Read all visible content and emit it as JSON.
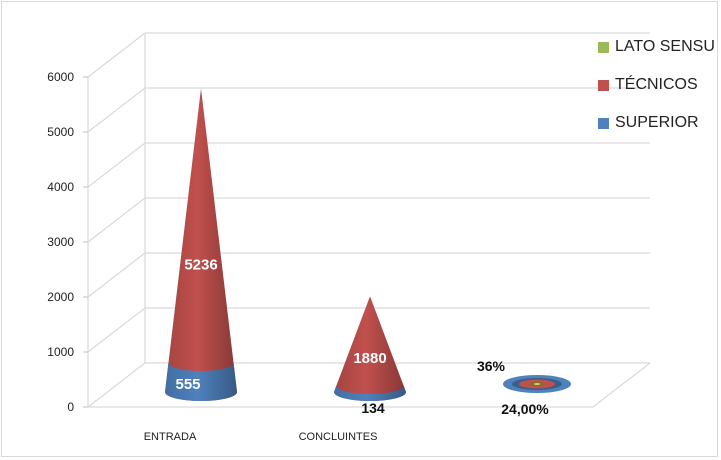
{
  "chart_data": {
    "type": "3d-cone-stacked",
    "title": "",
    "xlabel": "",
    "ylabel": "",
    "ylim": [
      0,
      6000
    ],
    "ytick_step": 1000,
    "grid": true,
    "legend_position": "top-right",
    "categories": [
      "ENTRADA",
      "CONCLUINTES",
      ""
    ],
    "series": [
      {
        "name": "SUPERIOR",
        "color": "#4f81bd",
        "values": [
          555,
          134,
          0.24
        ],
        "labels": [
          "555",
          "134",
          "24,00%"
        ]
      },
      {
        "name": "TÉCNICOS",
        "color": "#c0504d",
        "values": [
          5236,
          1880,
          0.36
        ],
        "labels": [
          "5236",
          "1880",
          "36%"
        ]
      },
      {
        "name": "LATO SENSU",
        "color": "#9bbb59",
        "values": [
          0,
          0,
          0
        ],
        "labels": [
          "",
          "",
          ""
        ]
      }
    ]
  },
  "legend": {
    "items": [
      {
        "label": "LATO SENSU",
        "color": "#9bbb59"
      },
      {
        "label": "TÉCNICOS",
        "color": "#c0504d"
      },
      {
        "label": "SUPERIOR",
        "color": "#4f81bd"
      }
    ]
  }
}
